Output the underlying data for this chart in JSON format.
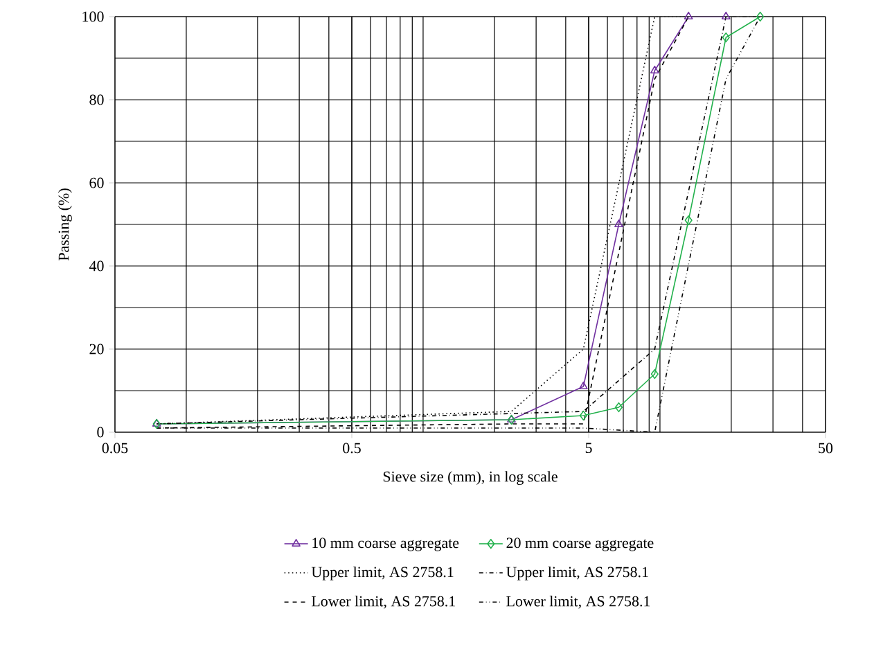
{
  "chart_data": {
    "type": "line",
    "xlabel": "Sieve size (mm), in log scale",
    "ylabel": "Passing (%)",
    "log": "x",
    "xlim": [
      0.05,
      50
    ],
    "xticks": [
      0.05,
      0.5,
      5,
      50
    ],
    "ylim": [
      0,
      100
    ],
    "yticks": [
      0,
      20,
      40,
      60,
      80,
      100
    ],
    "grid": true,
    "legend": "bottom",
    "series": [
      {
        "name": "10 mm coarse aggregate",
        "color": "#7030a0",
        "marker": "triangle",
        "line_style": "solid",
        "x": [
          0.075,
          2.36,
          4.75,
          6.7,
          9.5,
          13.2,
          19
        ],
        "values": [
          2,
          3,
          11,
          50,
          87,
          100,
          100
        ]
      },
      {
        "name": "20 mm coarse aggregate",
        "color": "#22b14c",
        "marker": "diamond",
        "line_style": "solid",
        "x": [
          0.075,
          2.36,
          4.75,
          6.7,
          9.5,
          13.2,
          19,
          26.5
        ],
        "values": [
          2,
          3,
          4,
          6,
          14,
          51,
          95,
          100
        ]
      },
      {
        "name": "Upper limit, AS 2758.1",
        "color": "#000000",
        "marker": "none",
        "line_style": "dotted",
        "x": [
          0.075,
          2.36,
          4.75,
          9.5,
          13.2
        ],
        "values": [
          2,
          5,
          20,
          100,
          100
        ]
      },
      {
        "name": "Upper limit, AS 2758.1",
        "color": "#000000",
        "marker": "none",
        "line_style": "dashdotted",
        "x": [
          0.075,
          4.75,
          9.5,
          19,
          26.5
        ],
        "values": [
          2,
          5,
          20,
          100,
          100
        ]
      },
      {
        "name": "Lower limit, AS 2758.1",
        "color": "#000000",
        "marker": "none",
        "line_style": "dashed",
        "x": [
          0.075,
          2.36,
          4.75,
          9.5,
          13.2
        ],
        "values": [
          1,
          2,
          2,
          85,
          100
        ]
      },
      {
        "name": "Lower limit, AS 2758.1",
        "color": "#000000",
        "marker": "none",
        "line_style": "dashdotdotted",
        "x": [
          0.075,
          4.75,
          9.5,
          19,
          26.5
        ],
        "values": [
          1,
          1,
          0,
          85,
          100
        ]
      }
    ]
  }
}
